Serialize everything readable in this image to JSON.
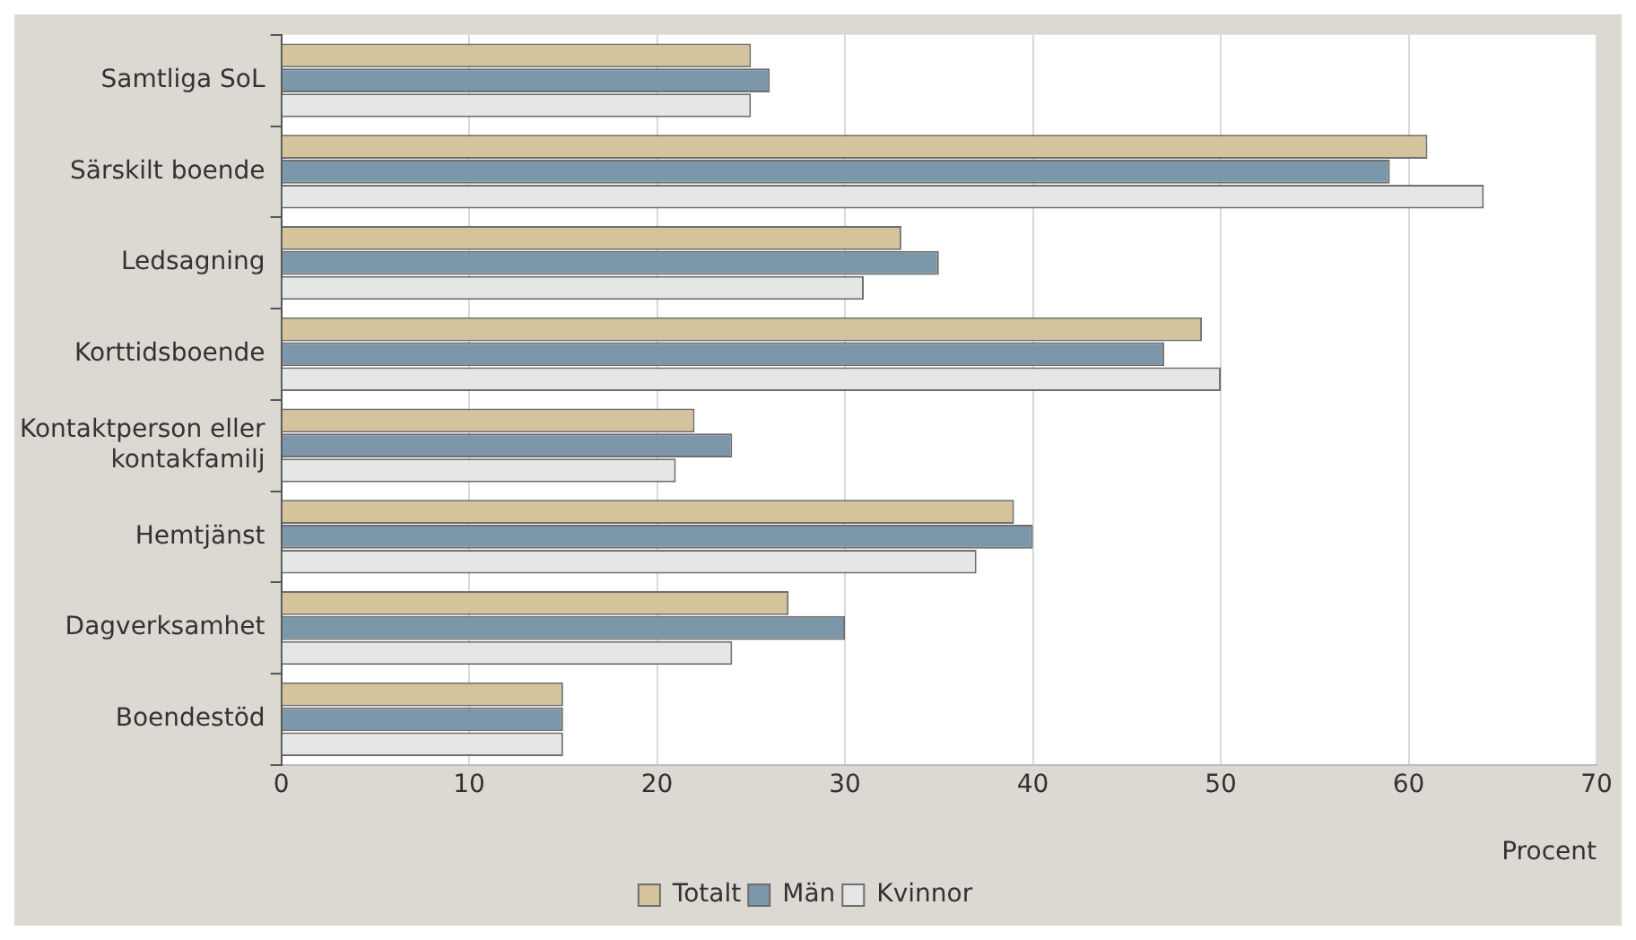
{
  "chart_data": {
    "type": "bar",
    "orientation": "horizontal",
    "xlabel": "Procent",
    "categories": [
      "Samtliga SoL",
      "Särskilt boende",
      "Ledsagning",
      "Korttidsboende",
      "Kontaktperson eller kontakfamilj",
      "Hemtjänst",
      "Dagverksamhet",
      "Boendestöd"
    ],
    "series": [
      {
        "name": "Totalt",
        "color": "#d5c49b",
        "values": [
          25,
          61,
          33,
          49,
          22,
          39,
          27,
          15
        ]
      },
      {
        "name": "Män",
        "color": "#7b97a9",
        "values": [
          26,
          59,
          35,
          47,
          24,
          40,
          30,
          15
        ]
      },
      {
        "name": "Kvinnor",
        "color": "#e5e7e7",
        "values": [
          25,
          64,
          31,
          50,
          21,
          37,
          24,
          15
        ]
      }
    ],
    "xlim": [
      0,
      70
    ],
    "xticks": [
      0,
      10,
      20,
      30,
      40,
      50,
      60,
      70
    ],
    "grid": "x",
    "legend": "bottom"
  }
}
